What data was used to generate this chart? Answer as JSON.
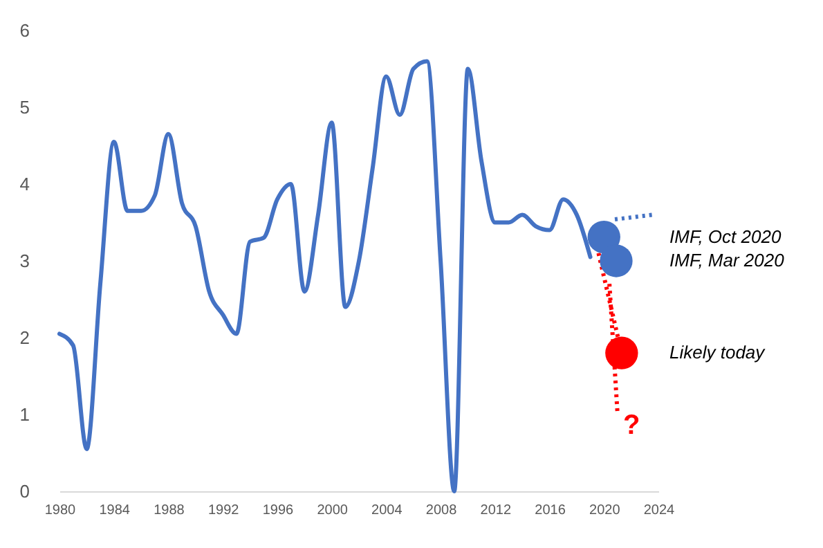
{
  "chart_data": {
    "type": "line",
    "xlim": [
      1980,
      2024
    ],
    "xticks": [
      1980,
      1984,
      1988,
      1992,
      1996,
      2000,
      2004,
      2008,
      2012,
      2016,
      2020,
      2024
    ],
    "ylim": [
      0,
      6
    ],
    "yticks": [
      0,
      1,
      2,
      3,
      4,
      5,
      6
    ],
    "grid": false,
    "series": [
      {
        "type": "line",
        "color": "#4472c4",
        "line_style": "solid",
        "x": [
          1980,
          1981,
          1982,
          1983,
          1984,
          1985,
          1986,
          1987,
          1988,
          1989,
          1990,
          1991,
          1992,
          1993,
          1994,
          1995,
          1996,
          1997,
          1998,
          1999,
          2000,
          2001,
          2002,
          2003,
          2004,
          2005,
          2006,
          2007,
          2008,
          2009,
          2010,
          2011,
          2012,
          2013,
          2014,
          2015,
          2016,
          2017,
          2018,
          2019
        ],
        "values": [
          2.05,
          1.9,
          0.55,
          2.7,
          4.55,
          3.65,
          3.65,
          3.85,
          4.65,
          3.75,
          3.45,
          2.6,
          2.3,
          2.05,
          3.25,
          3.3,
          3.8,
          4.0,
          2.6,
          3.6,
          4.8,
          2.4,
          3.0,
          4.2,
          5.4,
          4.9,
          5.5,
          5.6,
          3.0,
          0.0,
          5.5,
          4.3,
          3.5,
          3.5,
          3.6,
          3.45,
          3.4,
          3.8,
          3.6,
          3.05
        ]
      },
      {
        "type": "line",
        "color": "#4472c4",
        "line_style": "dotted",
        "x": [
          2020.8,
          2023.6
        ],
        "values": [
          3.54,
          3.6
        ]
      },
      {
        "type": "line",
        "color": "#ff0000",
        "line_style": "dotted",
        "x": [
          2019.6,
          2021.1
        ],
        "values": [
          3.1,
          1.95
        ]
      },
      {
        "type": "line",
        "color": "#ff0000",
        "line_style": "dotted",
        "x": [
          2020.4,
          2021.0
        ],
        "values": [
          2.7,
          1.0
        ]
      },
      {
        "type": "scatter",
        "name": "IMF, Oct 2020",
        "color": "#4472c4",
        "marker": "circle",
        "x": [
          2020
        ],
        "values": [
          3.31
        ]
      },
      {
        "type": "scatter",
        "name": "IMF, Mar 2020",
        "color": "#4472c4",
        "marker": "circle",
        "x": [
          2020.9
        ],
        "values": [
          3.0
        ]
      },
      {
        "type": "scatter",
        "name": "Likely today",
        "color": "#ff0000",
        "marker": "circle",
        "x": [
          2021.3
        ],
        "values": [
          1.8
        ]
      }
    ],
    "annotations": [
      {
        "text": "?",
        "x": 2021.0,
        "y": 1.0
      }
    ]
  }
}
